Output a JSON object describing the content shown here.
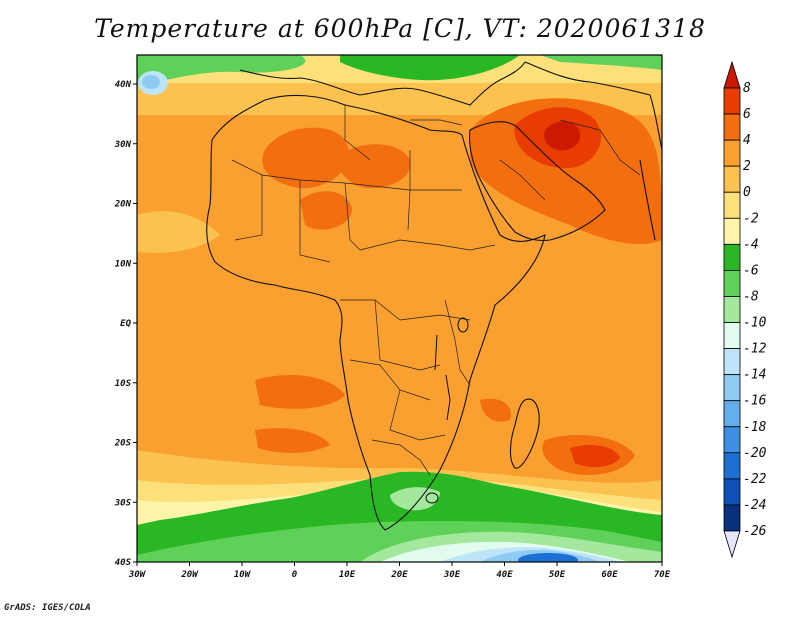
{
  "title": "Temperature at 600hPa [C], VT: 2020061318",
  "credit": "GrADS: IGES/COLA",
  "map": {
    "lon_ticks": [
      "30W",
      "20W",
      "10W",
      "0",
      "10E",
      "20E",
      "30E",
      "40E",
      "50E",
      "60E",
      "70E"
    ],
    "lat_ticks": [
      "40N",
      "30N",
      "20N",
      "10N",
      "EQ",
      "10S",
      "20S",
      "30S",
      "40S"
    ]
  },
  "colorbar": {
    "labels": [
      "8",
      "6",
      "4",
      "2",
      "0",
      "-2",
      "-4",
      "-6",
      "-8",
      "-10",
      "-12",
      "-14",
      "-16",
      "-18",
      "-20",
      "-22",
      "-24",
      "-26"
    ],
    "colors": [
      "#cc1a00",
      "#e83c00",
      "#f36e0f",
      "#f9a031",
      "#fbc24f",
      "#fce07a",
      "#fdf3a9",
      "#29b823",
      "#5fd159",
      "#a3e89c",
      "#e2fbef",
      "#bde4f8",
      "#8fcaf2",
      "#63aeeb",
      "#3c8fe2",
      "#1e6fd3",
      "#0f4fb6",
      "#08307e",
      "#061a52"
    ]
  }
}
